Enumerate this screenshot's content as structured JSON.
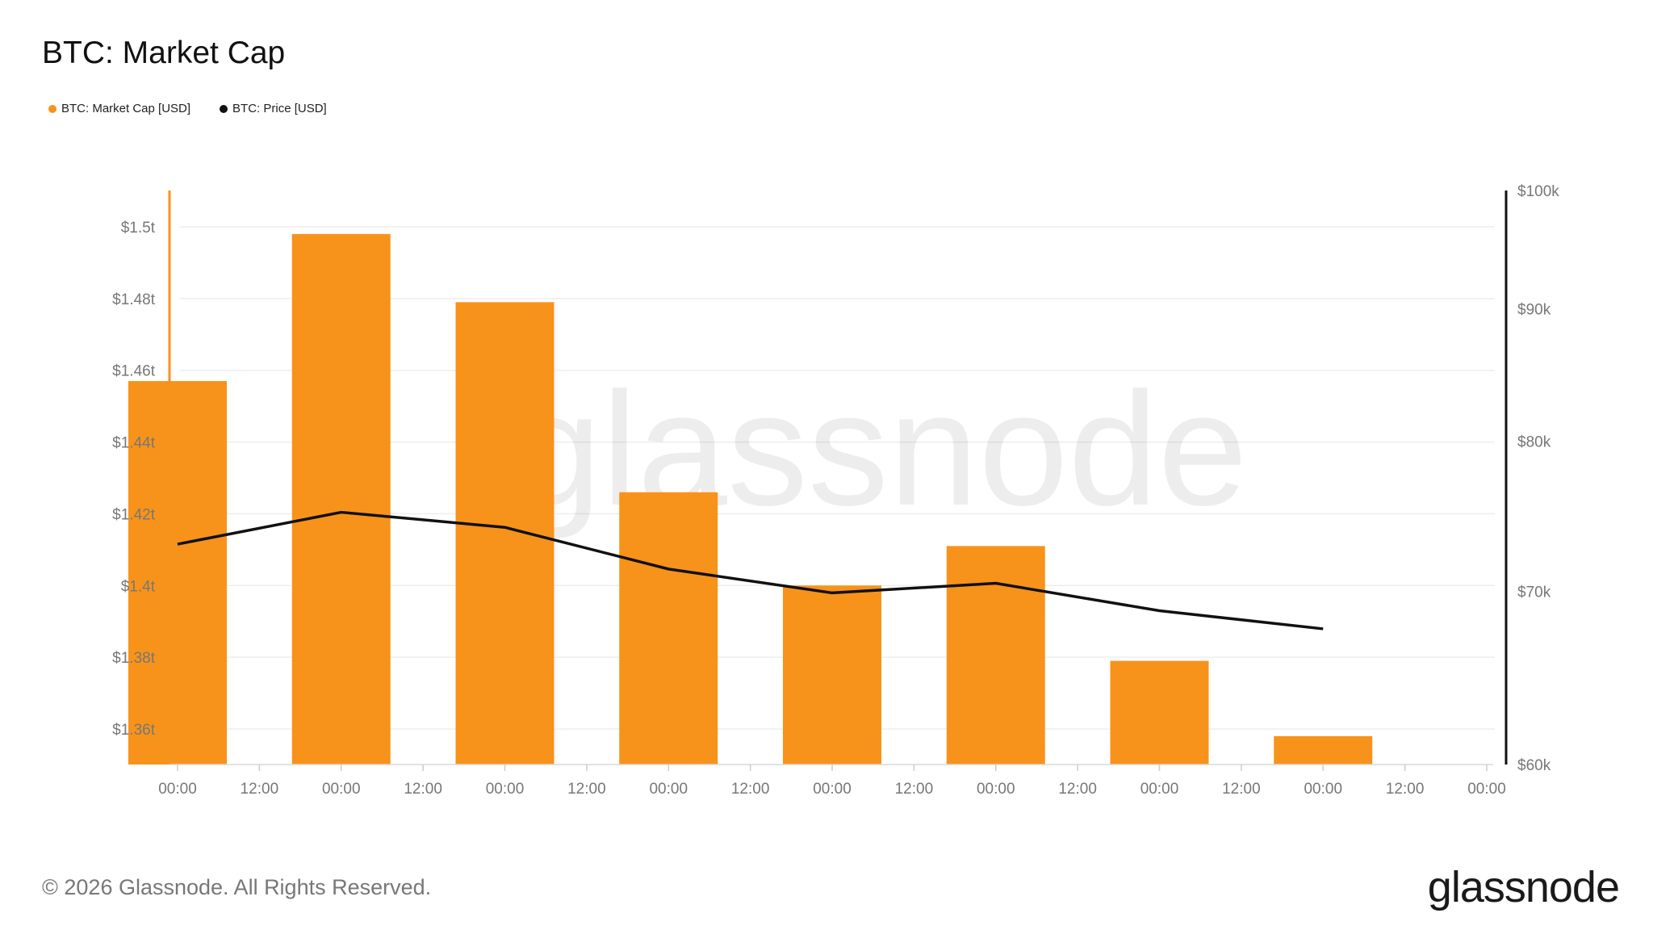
{
  "chart_data": {
    "type": "bar",
    "title": "BTC: Market Cap",
    "watermark": "glassnode",
    "x_ticks": [
      "00:00",
      "12:00",
      "00:00",
      "12:00",
      "00:00",
      "12:00",
      "00:00",
      "12:00",
      "00:00",
      "12:00",
      "00:00",
      "12:00",
      "00:00",
      "12:00",
      "00:00",
      "12:00",
      "00:00"
    ],
    "series": [
      {
        "name": "BTC: Market Cap [USD]",
        "type": "bar",
        "axis": "left",
        "color": "#F7931A",
        "values": [
          1.457,
          1.498,
          1.479,
          1.426,
          1.4,
          1.411,
          1.379,
          1.358
        ]
      },
      {
        "name": "BTC: Price [USD]",
        "type": "line",
        "axis": "right",
        "color": "#111111",
        "values": [
          73000,
          75100,
          74100,
          71400,
          69900,
          70500,
          68800,
          67700
        ]
      }
    ],
    "left_axis": {
      "ylim": [
        1.35,
        1.51
      ],
      "ticks": [
        1.36,
        1.38,
        1.4,
        1.42,
        1.44,
        1.46,
        1.48,
        1.5
      ],
      "tick_labels": [
        "$1.36t",
        "$1.38t",
        "$1.4t",
        "$1.42t",
        "$1.44t",
        "$1.46t",
        "$1.48t",
        "$1.5t"
      ]
    },
    "right_axis": {
      "ticks": [
        60000,
        70000,
        80000,
        90000,
        100000
      ],
      "tick_labels": [
        "$60k",
        "$70k",
        "$80k",
        "$90k",
        "$100k"
      ],
      "scale": "log"
    },
    "grid": true,
    "legend_position": "top-left"
  },
  "footer": {
    "copyright": "© 2026 Glassnode. All Rights Reserved.",
    "logo_text": "glassnode"
  }
}
